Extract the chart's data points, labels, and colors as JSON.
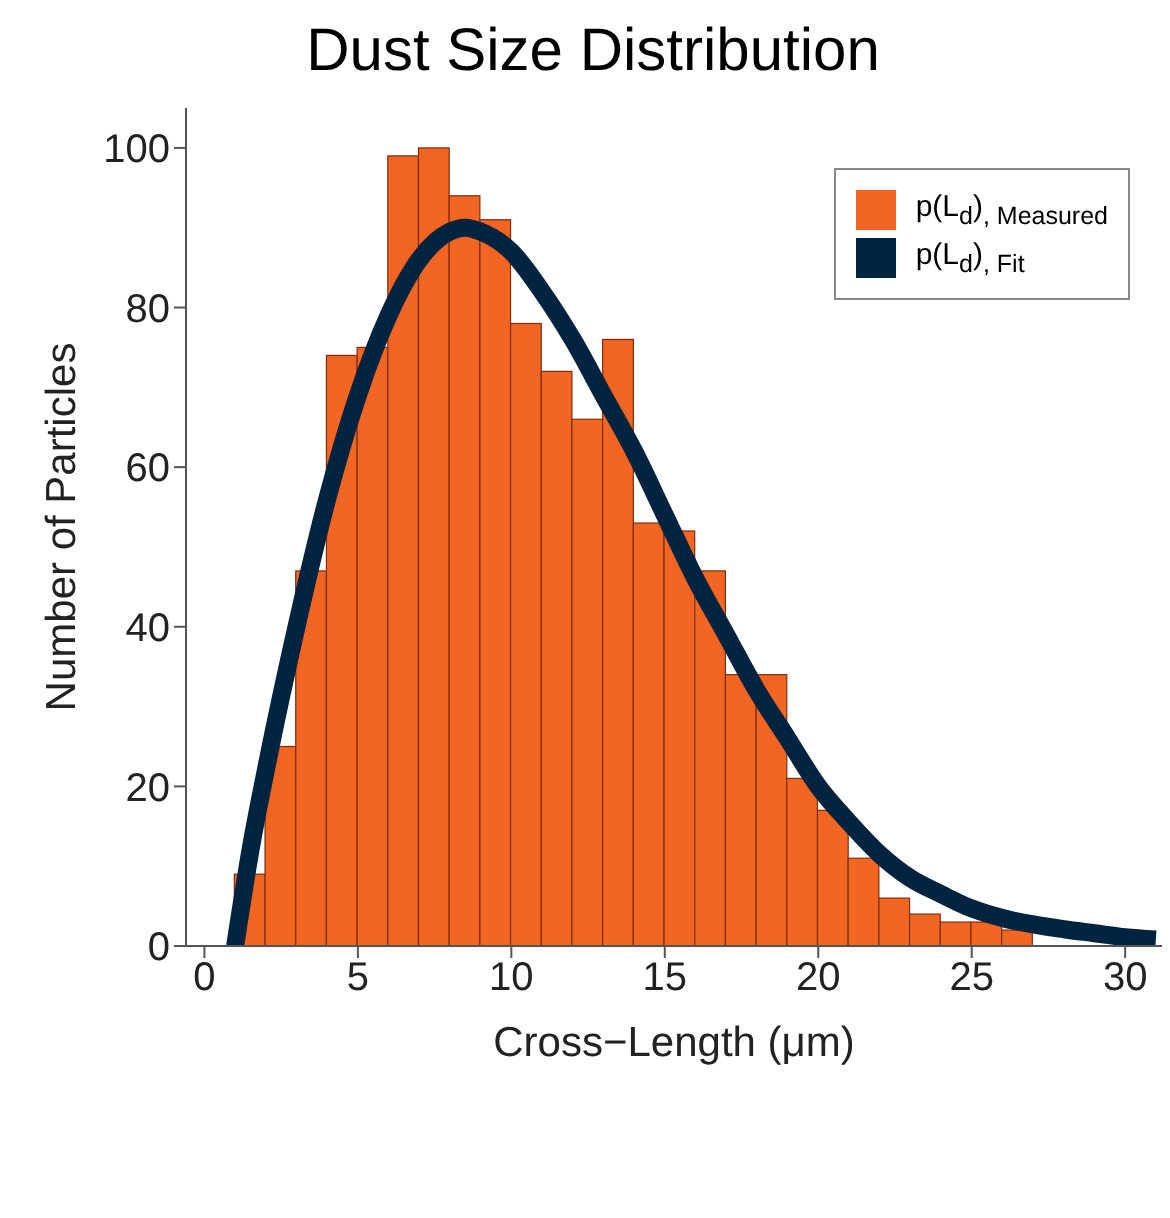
{
  "chart_data": {
    "type": "histogram",
    "title": "Dust Size Distribution",
    "xlabel": "Cross−Length (μm)",
    "ylabel": "Number of Particles",
    "bins": [
      1,
      2,
      3,
      4,
      5,
      6,
      7,
      8,
      9,
      10,
      11,
      12,
      13,
      14,
      15,
      16,
      17,
      18,
      19,
      20,
      21,
      22,
      23,
      24,
      25,
      26,
      27,
      28,
      29,
      30,
      31
    ],
    "series": [
      {
        "name": "p(L$_{d}$)$_{, Measured}$",
        "color": "#f26522",
        "values": [
          9,
          25,
          47,
          74,
          75,
          99,
          100,
          94,
          91,
          78,
          72,
          66,
          76,
          53,
          52,
          47,
          34,
          34,
          21,
          17,
          11,
          6,
          4,
          3,
          3,
          2,
          null,
          0,
          0,
          null
        ]
      },
      {
        "type": "line",
        "name": "p(L$_{d}$)$_{, Fit}$",
        "color": "#00233f",
        "x": [
          1,
          1.5,
          2,
          3,
          4,
          5,
          6,
          7,
          8,
          8.5,
          9,
          10,
          11,
          12,
          13,
          14,
          15,
          16,
          17,
          18,
          19,
          20,
          21,
          22,
          23,
          24,
          25,
          26,
          27,
          28,
          29,
          30,
          31
        ],
        "values": [
          0,
          12,
          22,
          40,
          56,
          69,
          79,
          86,
          89.5,
          90,
          89.5,
          87,
          82,
          76,
          69,
          62,
          54,
          46,
          39,
          32,
          26,
          20,
          15.5,
          11.5,
          8.5,
          6.5,
          4.7,
          3.5,
          2.7,
          2.1,
          1.6,
          1.1,
          0.8
        ]
      }
    ],
    "xlim": [
      -0.6,
      31.2
    ],
    "xticks": [
      0,
      5,
      10,
      15,
      20,
      25,
      30
    ],
    "ylim": [
      0,
      105
    ],
    "yticks": [
      0,
      20,
      40,
      60,
      80,
      100
    ],
    "legend": "top right",
    "marker": "none",
    "line_style": "solid",
    "grid": false
  }
}
